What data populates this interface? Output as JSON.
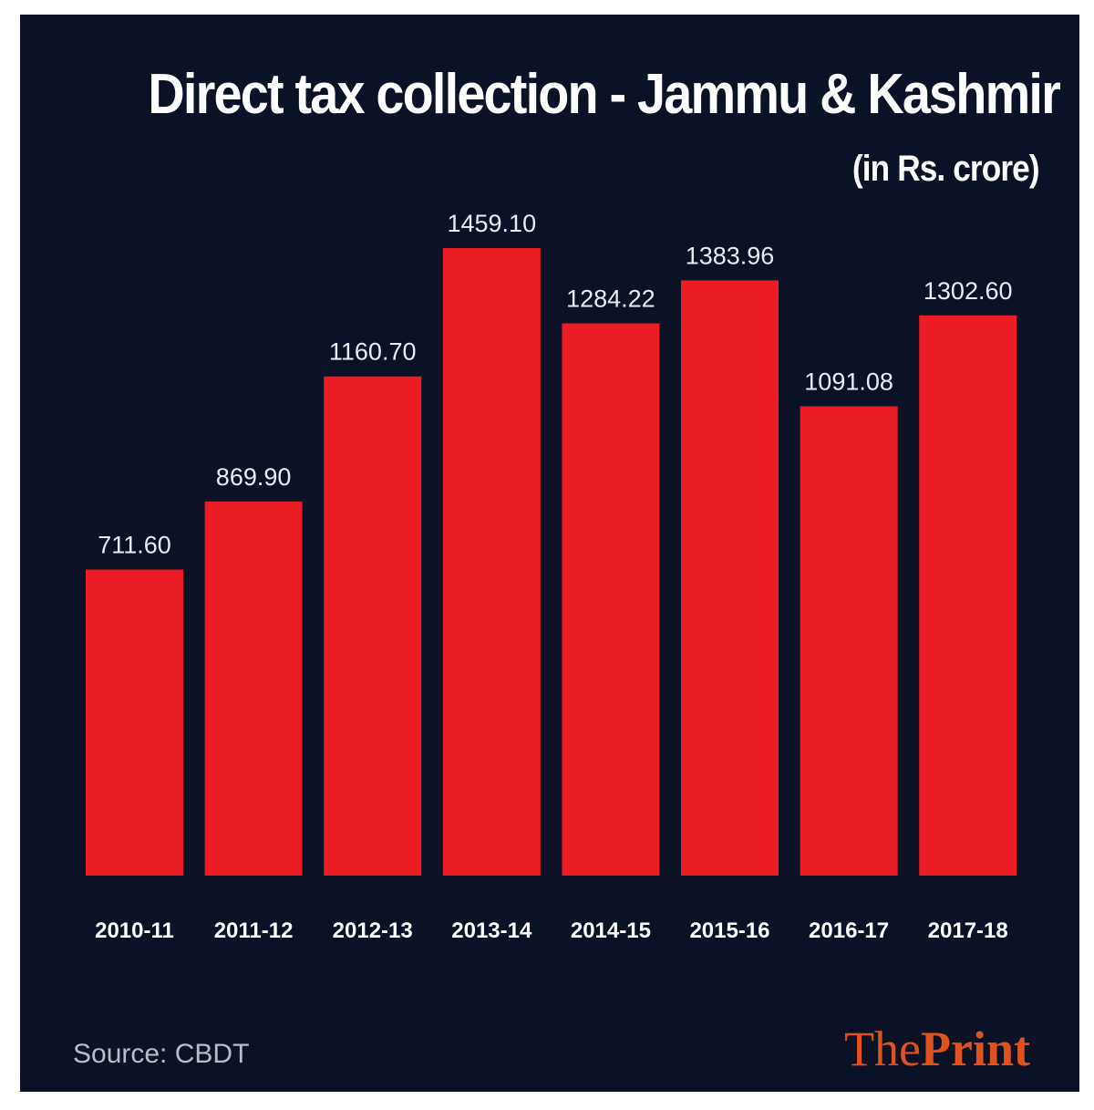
{
  "colors": {
    "background": "#0b1226",
    "bar": "#ec1c24",
    "brand": "#e0521d"
  },
  "chart_data": {
    "type": "bar",
    "title": "Direct tax collection - Jammu & Kashmir",
    "subtitle": "(in Rs. crore)",
    "categories": [
      "2010-11",
      "2011-12",
      "2012-13",
      "2013-14",
      "2014-15",
      "2015-16",
      "2016-17",
      "2017-18"
    ],
    "values": [
      711.6,
      869.9,
      1160.7,
      1459.1,
      1284.22,
      1383.96,
      1091.08,
      1302.6
    ],
    "value_labels": [
      "711.60",
      "869.90",
      "1160.70",
      "1459.10",
      "1284.22",
      "1383.96",
      "1091.08",
      "1302.60"
    ],
    "ylim": [
      0,
      1459.1
    ],
    "grid": false,
    "legend": "none"
  },
  "footer": {
    "source": "Source: CBDT",
    "brand_part1": "The",
    "brand_part2": "Print"
  }
}
